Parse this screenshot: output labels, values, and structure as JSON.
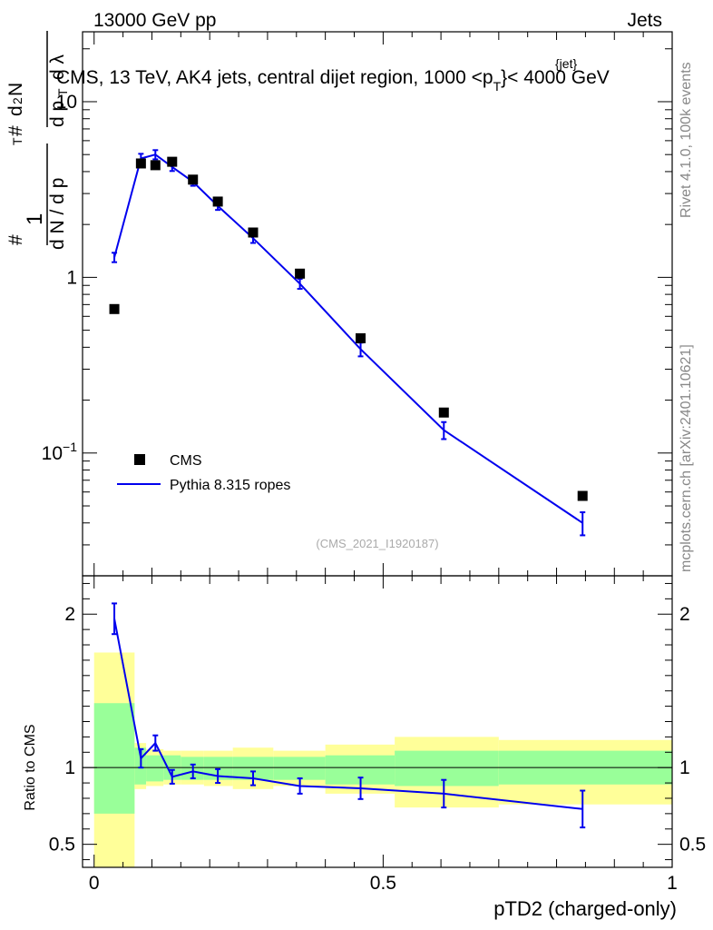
{
  "header": {
    "left": "13000 GeV pp",
    "right": "Jets"
  },
  "main_title": "CMS, 13 TeV, AK4 jets, central dijet region, 1000 <p",
  "main_title_sup": "{jet}",
  "main_title_sub": "T",
  "main_title_end": "}< 4000 GeV",
  "side_text": {
    "rivet": "Rivet 4.1.0,  100k events",
    "mcplots": "mcplots.cern.ch [arXiv:2401.10621]"
  },
  "watermark": "(CMS_2021_I1920187)",
  "colors": {
    "mc": "#0000ee",
    "data": "#000000",
    "band_inner": "#99ff99",
    "band_outer": "#ffff99"
  },
  "chart_data": [
    {
      "type": "scatter",
      "panel": "main",
      "ylabel": "1/dN/dp_T  d²N/dp_T dλ",
      "yscale": "log",
      "ylim": [
        0.02,
        25
      ],
      "xlim": [
        -0.02,
        1.0
      ],
      "yticks": [
        {
          "value": 0.1,
          "base": "10",
          "exp": "−1"
        },
        {
          "value": 1,
          "label": "1"
        },
        {
          "value": 10,
          "label": "10"
        }
      ],
      "legend": {
        "position": "bottom-left",
        "data_label": "CMS",
        "mc_label": "Pythia 8.315 ropes"
      },
      "series": [
        {
          "name": "CMS",
          "x": [
            0.035,
            0.081,
            0.106,
            0.135,
            0.171,
            0.214,
            0.275,
            0.356,
            0.461,
            0.605,
            0.845
          ],
          "y": [
            0.66,
            4.45,
            4.35,
            4.55,
            3.6,
            2.7,
            1.8,
            1.05,
            0.45,
            0.17,
            0.057
          ]
        },
        {
          "name": "Pythia 8.315 ropes",
          "x": [
            0.035,
            0.081,
            0.106,
            0.135,
            0.171,
            0.214,
            0.275,
            0.356,
            0.461,
            0.605,
            0.845
          ],
          "y": [
            1.3,
            4.75,
            5.0,
            4.25,
            3.5,
            2.55,
            1.67,
            0.92,
            0.39,
            0.135,
            0.04
          ],
          "err": [
            0.08,
            0.3,
            0.3,
            0.22,
            0.18,
            0.13,
            0.1,
            0.06,
            0.035,
            0.015,
            0.006
          ]
        }
      ]
    },
    {
      "type": "line",
      "panel": "ratio",
      "ylabel": "Ratio to CMS",
      "ylim": [
        0.35,
        2.25
      ],
      "xlim": [
        -0.02,
        1.0
      ],
      "yticks": [
        0.5,
        1,
        2
      ],
      "xticks": [
        0,
        0.5,
        1
      ],
      "xticklabels": [
        "0",
        "0.5",
        "1"
      ],
      "xlabel": "pTD2 (charged-only)",
      "bands": [
        {
          "x0": 0.0,
          "x1": 0.07,
          "inner": [
            0.7,
            1.42
          ],
          "outer": [
            0.35,
            1.75
          ]
        },
        {
          "x0": 0.07,
          "x1": 0.09,
          "inner": [
            0.89,
            1.13
          ],
          "outer": [
            0.86,
            1.16
          ]
        },
        {
          "x0": 0.09,
          "x1": 0.12,
          "inner": [
            0.91,
            1.08
          ],
          "outer": [
            0.88,
            1.12
          ]
        },
        {
          "x0": 0.12,
          "x1": 0.15,
          "inner": [
            0.92,
            1.08
          ],
          "outer": [
            0.89,
            1.11
          ]
        },
        {
          "x0": 0.15,
          "x1": 0.19,
          "inner": [
            0.92,
            1.07
          ],
          "outer": [
            0.89,
            1.11
          ]
        },
        {
          "x0": 0.19,
          "x1": 0.24,
          "inner": [
            0.92,
            1.07
          ],
          "outer": [
            0.88,
            1.11
          ]
        },
        {
          "x0": 0.24,
          "x1": 0.31,
          "inner": [
            0.92,
            1.07
          ],
          "outer": [
            0.86,
            1.13
          ]
        },
        {
          "x0": 0.31,
          "x1": 0.4,
          "inner": [
            0.92,
            1.07
          ],
          "outer": [
            0.88,
            1.11
          ]
        },
        {
          "x0": 0.4,
          "x1": 0.52,
          "inner": [
            0.89,
            1.08
          ],
          "outer": [
            0.83,
            1.15
          ]
        },
        {
          "x0": 0.52,
          "x1": 0.7,
          "inner": [
            0.88,
            1.11
          ],
          "outer": [
            0.74,
            1.2
          ]
        },
        {
          "x0": 0.7,
          "x1": 1.0,
          "inner": [
            0.89,
            1.11
          ],
          "outer": [
            0.76,
            1.18
          ]
        }
      ],
      "series": [
        {
          "name": "Pythia 8.315 ropes",
          "x": [
            0.035,
            0.081,
            0.106,
            0.135,
            0.171,
            0.214,
            0.275,
            0.356,
            0.461,
            0.605,
            0.845
          ],
          "y": [
            1.97,
            1.06,
            1.16,
            0.94,
            0.975,
            0.945,
            0.93,
            0.88,
            0.865,
            0.83,
            0.73
          ],
          "err": [
            0.1,
            0.06,
            0.05,
            0.045,
            0.045,
            0.045,
            0.045,
            0.05,
            0.07,
            0.09,
            0.12
          ]
        }
      ]
    }
  ]
}
